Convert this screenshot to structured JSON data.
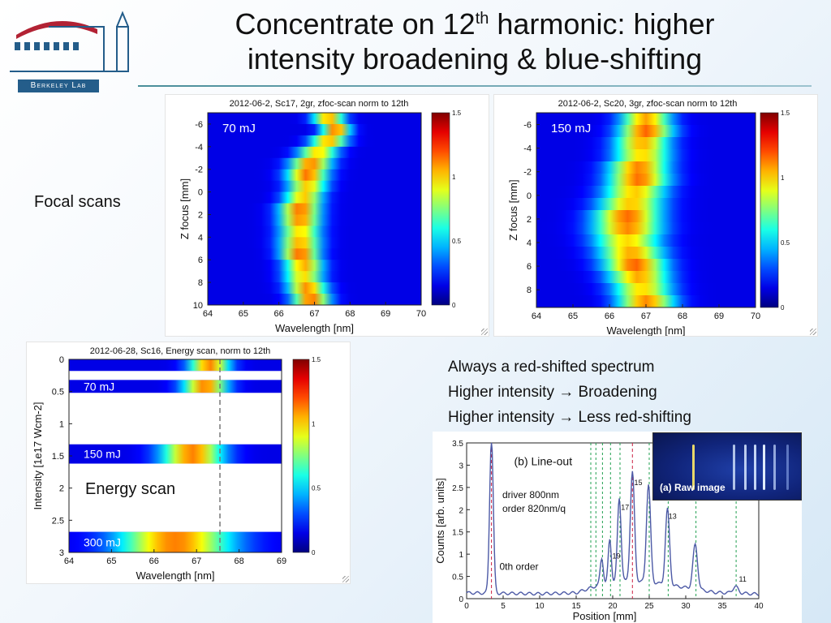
{
  "slide": {
    "title_line1_pre": "Concentrate on 12",
    "title_sup": "th",
    "title_line1_post": " harmonic: higher",
    "title_line2": "intensity broadening & blue-shifting",
    "logo_text": "Berkeley Lab",
    "focal_label": "Focal scans",
    "energy_label": "Energy scan",
    "observations": [
      "Always a red-shifted spectrum",
      "Higher intensity → Broadening",
      "Higher intensity → Less red-shifting"
    ],
    "driver_note_1": "driver 800nm",
    "driver_note_2": "order 820nm/q",
    "raw_label": "(a) Raw image"
  },
  "colors": {
    "title_rule": "#4a8e9a",
    "logo_blue": "#245d8a",
    "logo_red": "#b22234",
    "lineout_curve": "#4d5aa6",
    "red_dash": "#cc2244",
    "green_dash": "#22a050"
  },
  "chart_data": [
    {
      "type": "heatmap",
      "title": "2012-06-2, Sc17, 2gr, zfoc-scan norm to 12th",
      "annotation": "70 mJ",
      "xlabel": "Wavelength [nm]",
      "ylabel": "Z focus [mm]",
      "xticks": [
        "64",
        "65",
        "66",
        "67",
        "68",
        "69",
        "70"
      ],
      "yticks": [
        "-6",
        "-4",
        "-2",
        "0",
        "2",
        "4",
        "6",
        "8",
        "10"
      ],
      "xlim": [
        64,
        70
      ],
      "ylim": [
        -7,
        10
      ],
      "rows": [
        -6.5,
        -5.5,
        -4.5,
        -3.5,
        -2.5,
        -1.5,
        -0.5,
        0.5,
        1.5,
        2.5,
        3.5,
        4.5,
        5.5,
        6.5,
        7.5,
        8.5,
        9.5
      ],
      "centers": [
        67.4,
        67.6,
        67.4,
        67.1,
        66.9,
        66.8,
        66.8,
        66.7,
        66.6,
        66.6,
        66.6,
        66.6,
        66.6,
        66.7,
        66.7,
        66.8,
        66.9
      ],
      "widths": [
        0.42,
        0.38,
        0.48,
        0.52,
        0.55,
        0.55,
        0.52,
        0.52,
        0.55,
        0.55,
        0.55,
        0.55,
        0.52,
        0.52,
        0.52,
        0.52,
        0.5
      ],
      "colorbar": {
        "ticks": [
          "1.5",
          "1",
          "0.5",
          "0"
        ],
        "range": [
          0,
          1.5
        ]
      }
    },
    {
      "type": "heatmap",
      "title": "2012-06-2, Sc20, 3gr, zfoc-scan norm to 12th",
      "annotation": "150 mJ",
      "xlabel": "Wavelength [nm]",
      "ylabel": "Z focus [mm]",
      "xticks": [
        "64",
        "65",
        "66",
        "67",
        "68",
        "69",
        "70"
      ],
      "yticks": [
        "-6",
        "-4",
        "-2",
        "0",
        "2",
        "4",
        "6",
        "8"
      ],
      "xlim": [
        64,
        70
      ],
      "ylim": [
        -7,
        9.5
      ],
      "rows": [
        -6.5,
        -5.5,
        -4.5,
        -3.5,
        -2.5,
        -1.5,
        -0.5,
        0.5,
        1.5,
        2.5,
        3.5,
        4.5,
        5.5,
        6.5,
        7.5,
        8.5
      ],
      "centers": [
        67.0,
        67.0,
        66.9,
        66.9,
        66.8,
        66.8,
        66.7,
        66.6,
        66.5,
        66.5,
        66.5,
        66.6,
        66.7,
        66.8,
        66.9,
        67.0
      ],
      "widths": [
        0.65,
        0.7,
        0.72,
        0.75,
        0.78,
        0.8,
        0.82,
        0.85,
        0.88,
        0.9,
        0.88,
        0.85,
        0.82,
        0.8,
        0.78,
        0.75
      ],
      "colorbar": {
        "ticks": [
          "1.5",
          "1",
          "0.5",
          "0"
        ],
        "range": [
          0,
          1.5
        ]
      }
    },
    {
      "type": "heatmap",
      "title": "2012-06-28, Sc16, Energy scan, norm to 12th",
      "xlabel": "Wavelength [nm]",
      "ylabel": "Intensity [1e17 Wcm-2]",
      "xticks": [
        "64",
        "65",
        "66",
        "67",
        "68",
        "69"
      ],
      "yticks": [
        "0",
        "0.5",
        "1",
        "1.5",
        "2",
        "2.5",
        "3"
      ],
      "xlim": [
        64,
        69
      ],
      "ylim": [
        0,
        3
      ],
      "bands": [
        {
          "label": "",
          "y0": 0.0,
          "y1": 0.18,
          "center": 67.3,
          "width": 0.45
        },
        {
          "label": "70 mJ",
          "y0": 0.32,
          "y1": 0.52,
          "center": 67.2,
          "width": 0.5
        },
        {
          "label": "150 mJ",
          "y0": 1.32,
          "y1": 1.62,
          "center": 66.9,
          "width": 0.7
        },
        {
          "label": "300 mJ",
          "y0": 2.68,
          "y1": 3.0,
          "center": 66.5,
          "width": 1.3
        }
      ],
      "reference_line_x": 67.55,
      "colorbar": {
        "ticks": [
          "1.5",
          "1",
          "0.5",
          "0"
        ],
        "range": [
          0,
          1.5
        ]
      }
    },
    {
      "type": "line",
      "title": "(b) Line-out",
      "xlabel": "Position [mm]",
      "ylabel": "Counts [arb. units]",
      "xlim": [
        0,
        40
      ],
      "ylim": [
        0,
        3.5
      ],
      "xticks": [
        "0",
        "5",
        "10",
        "15",
        "20",
        "25",
        "30",
        "35",
        "40"
      ],
      "yticks": [
        "0",
        "0.5",
        "1",
        "1.5",
        "2",
        "2.5",
        "3",
        "3.5"
      ],
      "peaks": [
        {
          "x": 3.4,
          "y": 3.5,
          "w": 0.35
        },
        {
          "x": 18.5,
          "y": 0.6,
          "w": 0.3
        },
        {
          "x": 19.6,
          "y": 1.0,
          "w": 0.3
        },
        {
          "x": 20.9,
          "y": 1.9,
          "w": 0.35
        },
        {
          "x": 22.7,
          "y": 2.45,
          "w": 0.4
        },
        {
          "x": 24.9,
          "y": 2.2,
          "w": 0.4
        },
        {
          "x": 27.5,
          "y": 1.7,
          "w": 0.4
        },
        {
          "x": 31.3,
          "y": 1.0,
          "w": 0.45
        },
        {
          "x": 36.8,
          "y": 0.15,
          "w": 0.5
        }
      ],
      "baseline": [
        [
          0,
          0.13
        ],
        [
          5,
          0.12
        ],
        [
          10,
          0.11
        ],
        [
          15,
          0.13
        ],
        [
          18,
          0.3
        ],
        [
          22,
          0.4
        ],
        [
          26,
          0.35
        ],
        [
          30,
          0.25
        ],
        [
          34,
          0.14
        ],
        [
          38,
          0.12
        ],
        [
          40,
          0.1
        ]
      ],
      "red_lines": [
        3.4,
        22.7
      ],
      "green_lines": [
        17.0,
        17.7,
        18.6,
        19.7,
        21.0,
        25.0,
        27.6,
        31.4,
        36.9
      ],
      "annotations": [
        "0th order",
        "11",
        "13",
        "15",
        "17",
        "19"
      ]
    }
  ]
}
